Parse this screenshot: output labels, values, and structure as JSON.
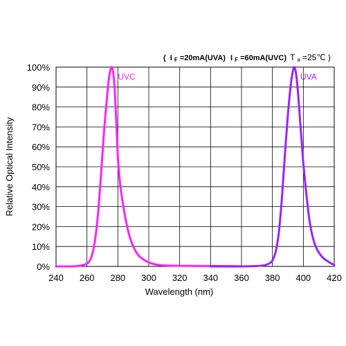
{
  "conditions": {
    "open": "(",
    "i1": "I",
    "i1_sub": "F",
    "i1_rest": "=20mA(UVA)",
    "i2": "I",
    "i2_sub": "F",
    "i2_rest": "=60mA(UVC)",
    "ta": "T",
    "ta_sub": "a",
    "ta_rest": "=25℃",
    "close": ")"
  },
  "chart_data": {
    "type": "line",
    "title": "",
    "xlabel": "Wavelength (nm)",
    "ylabel": "Relative Optical Intensity",
    "xlim": [
      240,
      420
    ],
    "ylim": [
      0,
      100
    ],
    "x_ticks": [
      240,
      260,
      280,
      300,
      320,
      340,
      360,
      380,
      400,
      420
    ],
    "y_ticks": [
      0,
      10,
      20,
      30,
      40,
      50,
      60,
      70,
      80,
      90,
      100
    ],
    "y_tick_suffix": "%",
    "grid": true,
    "series": [
      {
        "name": "UVC",
        "color": "#ff22ff",
        "points": [
          [
            240,
            0
          ],
          [
            250,
            0
          ],
          [
            255,
            0.3
          ],
          [
            258,
            0.8
          ],
          [
            261,
            2
          ],
          [
            263,
            5
          ],
          [
            265,
            12
          ],
          [
            267,
            25
          ],
          [
            269,
            45
          ],
          [
            271,
            67
          ],
          [
            273,
            85
          ],
          [
            274,
            93
          ],
          [
            275,
            98
          ],
          [
            276,
            100
          ],
          [
            277,
            97
          ],
          [
            278,
            88
          ],
          [
            279,
            72
          ],
          [
            280,
            55
          ],
          [
            281,
            45
          ],
          [
            282,
            38
          ],
          [
            284,
            28
          ],
          [
            286,
            20
          ],
          [
            288,
            14
          ],
          [
            290,
            10
          ],
          [
            292,
            7
          ],
          [
            294,
            5
          ],
          [
            296,
            3.8
          ],
          [
            298,
            2.8
          ],
          [
            300,
            2
          ],
          [
            303,
            1.2
          ],
          [
            306,
            0.8
          ],
          [
            310,
            0.5
          ],
          [
            320,
            0.3
          ],
          [
            340,
            0.2
          ],
          [
            360,
            0.1
          ]
        ]
      },
      {
        "name": "UVA",
        "color": "#9a22ff",
        "points": [
          [
            340,
            0
          ],
          [
            360,
            0
          ],
          [
            370,
            0.2
          ],
          [
            375,
            0.6
          ],
          [
            378,
            1.5
          ],
          [
            380,
            3
          ],
          [
            382,
            7
          ],
          [
            384,
            16
          ],
          [
            386,
            33
          ],
          [
            388,
            55
          ],
          [
            390,
            76
          ],
          [
            392,
            92
          ],
          [
            393,
            97
          ],
          [
            394,
            100
          ],
          [
            395,
            98
          ],
          [
            396,
            92
          ],
          [
            397,
            83
          ],
          [
            398,
            72
          ],
          [
            399,
            62
          ],
          [
            400,
            52
          ],
          [
            402,
            36
          ],
          [
            404,
            23
          ],
          [
            406,
            15
          ],
          [
            408,
            10
          ],
          [
            410,
            7
          ],
          [
            412,
            5
          ],
          [
            414,
            3.5
          ],
          [
            416,
            2.5
          ],
          [
            418,
            1.5
          ],
          [
            420,
            0.8
          ]
        ]
      }
    ]
  }
}
